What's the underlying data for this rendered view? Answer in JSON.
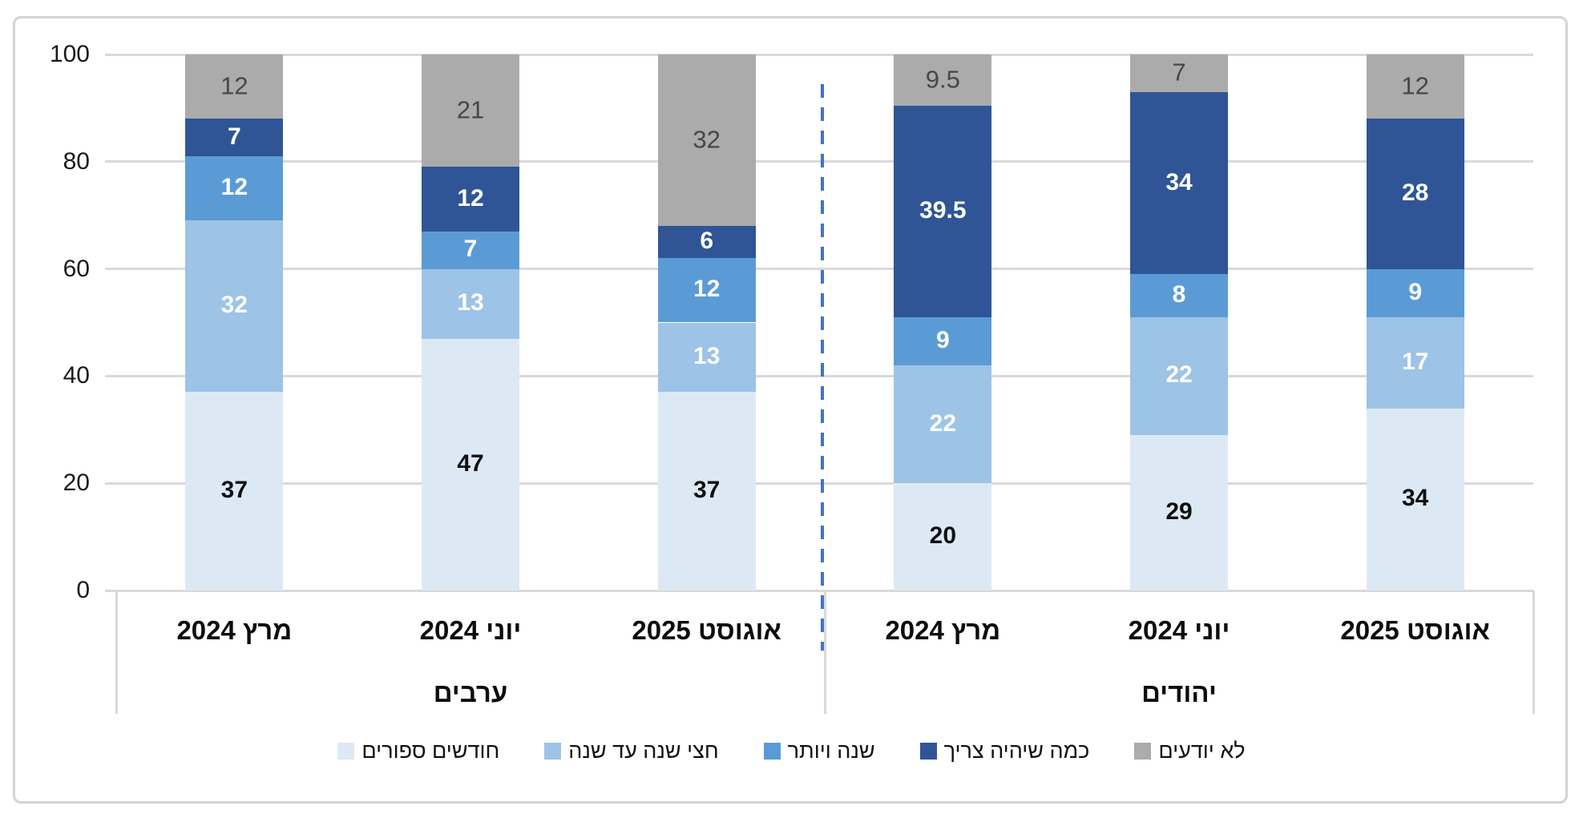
{
  "figure": {
    "background": "#ffffff",
    "border_color": "#d4d4d4"
  },
  "chart_data": {
    "type": "bar",
    "stacked": true,
    "orientation": "vertical",
    "title": "",
    "xlabel": "",
    "ylabel": "",
    "ylim": [
      0,
      100
    ],
    "grid": true,
    "gridline_color": "#d9d9d9",
    "yticks": [
      "0",
      "20",
      "40",
      "60",
      "80",
      "100"
    ],
    "groups": [
      {
        "label": "ערבים",
        "categories": [
          "מרץ 2024",
          "יוני 2024",
          "אוגוסט 2025"
        ]
      },
      {
        "label": "יהודים",
        "categories": [
          "מרץ 2024",
          "יוני 2024",
          "אוגוסט 2025"
        ]
      }
    ],
    "column_order_note": "values arrays are ordered: ערבים מרץ 2024, ערבים יוני 2024, ערבים אוגוסט 2025, יהודים מרץ 2024, יהודים יוני 2024, יהודים אוגוסט 2025",
    "series": [
      {
        "name": "חודשים ספורים",
        "color": "#dce9f5",
        "label_color": "#111111",
        "label_style": "dark",
        "values": [
          37,
          47,
          37,
          20,
          29,
          34
        ]
      },
      {
        "name": "חצי שנה עד שנה",
        "color": "#9dc3e6",
        "label_color": "#ffffff",
        "label_style": "light",
        "values": [
          32,
          13,
          13,
          22,
          22,
          17
        ]
      },
      {
        "name": "שנה ויותר",
        "color": "#5b9bd5",
        "label_color": "#ffffff",
        "label_style": "light",
        "values": [
          12,
          7,
          12,
          9,
          8,
          9
        ]
      },
      {
        "name": "כמה שיהיה צריך",
        "color": "#2f5597",
        "label_color": "#ffffff",
        "label_style": "light",
        "values": [
          7,
          12,
          6,
          39.5,
          34,
          28
        ]
      },
      {
        "name": "לא יודעים",
        "color": "#ababab",
        "label_color": "#474747",
        "label_style": "muted",
        "values": [
          12,
          21,
          32,
          9.5,
          7,
          12
        ]
      }
    ],
    "separator": {
      "color": "#4472c4",
      "style": "dashed",
      "between_groups": true
    },
    "legend_position": "bottom"
  }
}
